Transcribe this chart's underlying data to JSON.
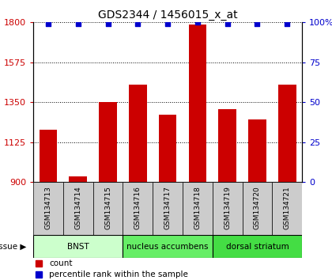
{
  "title": "GDS2344 / 1456015_x_at",
  "samples": [
    "GSM134713",
    "GSM134714",
    "GSM134715",
    "GSM134716",
    "GSM134717",
    "GSM134718",
    "GSM134719",
    "GSM134720",
    "GSM134721"
  ],
  "counts": [
    1195,
    930,
    1350,
    1450,
    1280,
    1790,
    1310,
    1255,
    1450
  ],
  "percentiles": [
    99,
    99,
    99,
    99,
    99,
    100,
    99,
    99,
    99
  ],
  "y_min": 900,
  "y_max": 1800,
  "y_ticks": [
    900,
    1125,
    1350,
    1575,
    1800
  ],
  "y_right_ticks": [
    0,
    25,
    50,
    75,
    100
  ],
  "bar_color": "#cc0000",
  "dot_color": "#0000cc",
  "tissue_groups": [
    {
      "label": "BNST",
      "start": 0,
      "end": 3,
      "color": "#ccffcc"
    },
    {
      "label": "nucleus accumbens",
      "start": 3,
      "end": 6,
      "color": "#66ee66"
    },
    {
      "label": "dorsal striatum",
      "start": 6,
      "end": 9,
      "color": "#44dd44"
    }
  ],
  "legend_count_color": "#cc0000",
  "legend_dot_color": "#0000cc",
  "ylabel_left_color": "#cc0000",
  "ylabel_right_color": "#0000cc",
  "grid_color": "#000000",
  "tick_label_bg": "#cccccc",
  "fig_bg": "#ffffff"
}
